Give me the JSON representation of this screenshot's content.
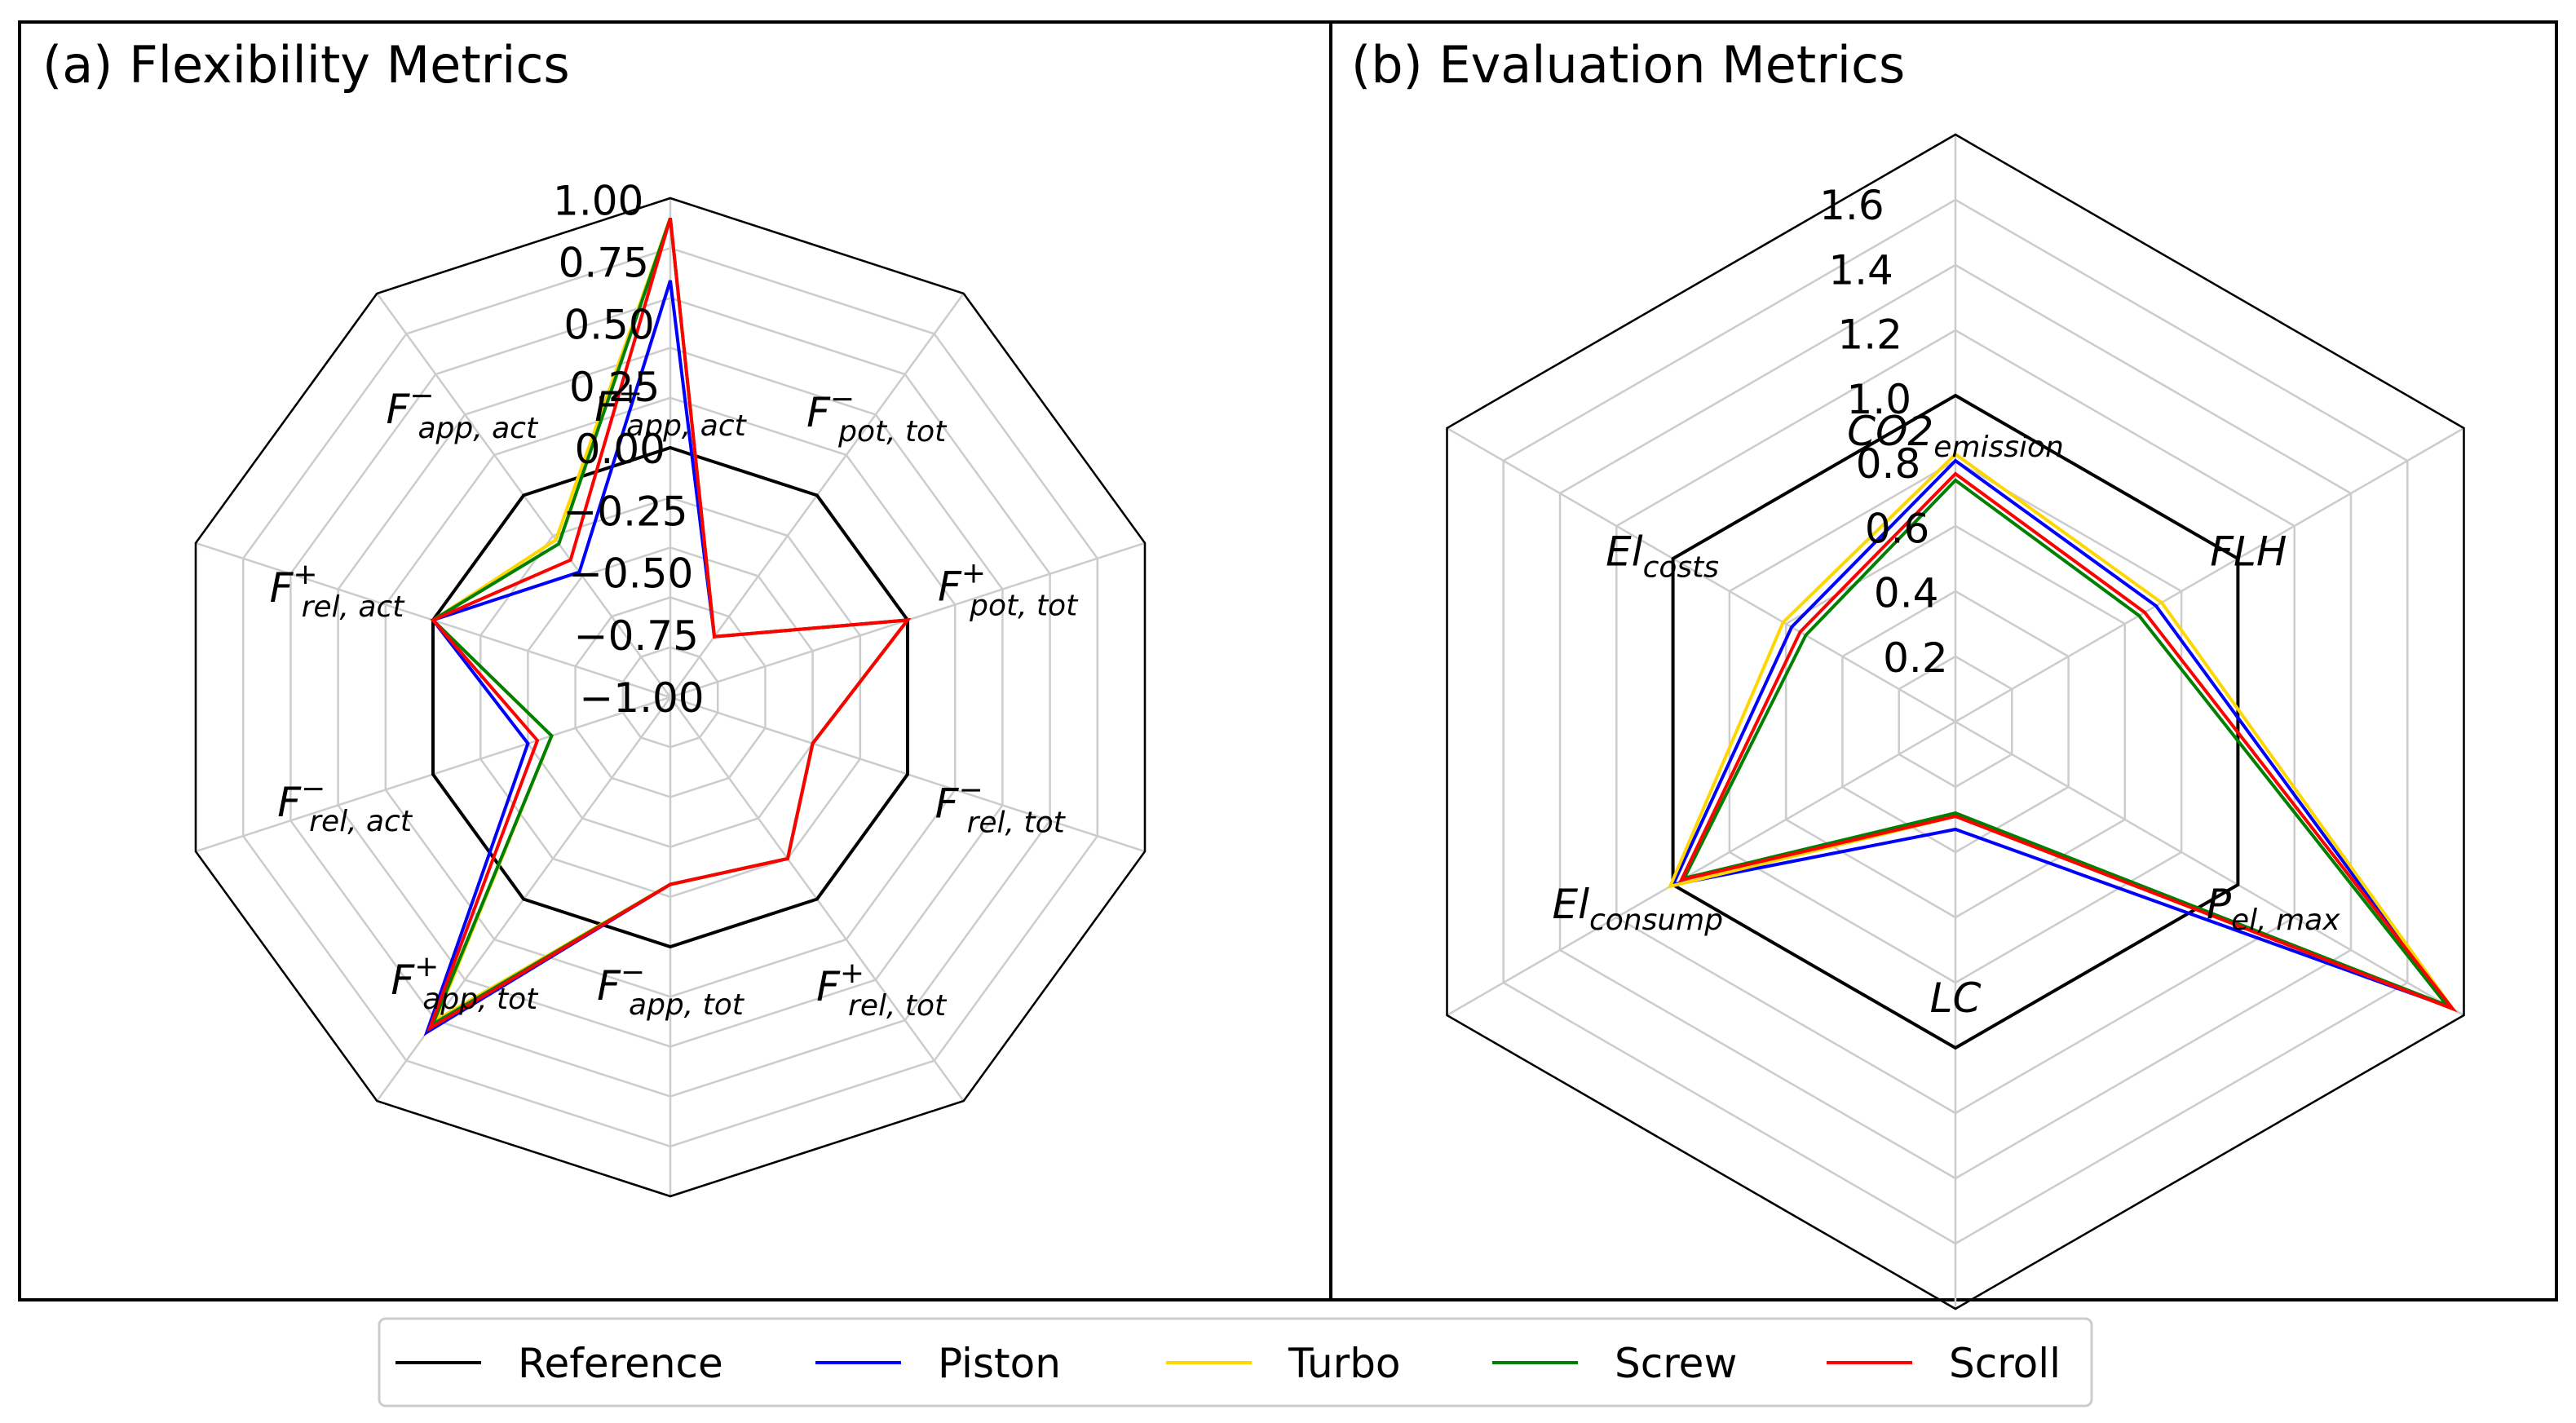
{
  "legend": [
    {
      "name": "Reference",
      "color": "#000000"
    },
    {
      "name": "Piston",
      "color": "#0000ff"
    },
    {
      "name": "Turbo",
      "color": "#ffd700"
    },
    {
      "name": "Screw",
      "color": "#008000"
    },
    {
      "name": "Scroll",
      "color": "#ff0000"
    }
  ],
  "chart_data": [
    {
      "type": "radar",
      "title": "(a) Flexibility Metrics",
      "axes": [
        {
          "base": "F",
          "sup": "+",
          "sub": "app, act"
        },
        {
          "base": "F",
          "sup": "−",
          "sub": "pot, tot"
        },
        {
          "base": "F",
          "sup": "+",
          "sub": "pot, tot"
        },
        {
          "base": "F",
          "sup": "−",
          "sub": "rel, tot"
        },
        {
          "base": "F",
          "sup": "+",
          "sub": "rel, tot"
        },
        {
          "base": "F",
          "sup": "−",
          "sub": "app, tot"
        },
        {
          "base": "F",
          "sup": "+",
          "sub": "app, tot"
        },
        {
          "base": "F",
          "sup": "−",
          "sub": "rel, act"
        },
        {
          "base": "F",
          "sup": "+",
          "sub": "rel, act"
        },
        {
          "base": "F",
          "sup": "−",
          "sub": "app, act"
        }
      ],
      "rlim": [
        -1.0,
        1.0
      ],
      "rticks": [
        -1.0,
        -0.75,
        -0.5,
        -0.25,
        0.0,
        0.25,
        0.5,
        0.75,
        1.0
      ],
      "rtick_labels": [
        "−1.00",
        "−0.75",
        "−0.50",
        "−0.25",
        "0.00",
        "0.25",
        "0.50",
        "0.75",
        "1.00"
      ],
      "grid_levels": [
        -1.0,
        -0.8,
        -0.6,
        -0.4,
        -0.2,
        0.0,
        0.2,
        0.4,
        0.6,
        0.8,
        1.0
      ],
      "series": [
        {
          "name": "Reference",
          "values": [
            0,
            0,
            0,
            0,
            0,
            0,
            0,
            0,
            0,
            0
          ]
        },
        {
          "name": "Piston",
          "values": [
            0.67,
            -0.7,
            0.0,
            -0.4,
            -0.2,
            -0.25,
            0.66,
            -0.4,
            0.0,
            -0.38
          ]
        },
        {
          "name": "Turbo",
          "values": [
            0.92,
            -0.7,
            0.0,
            -0.4,
            -0.2,
            -0.25,
            0.6,
            -0.5,
            0.0,
            -0.22
          ]
        },
        {
          "name": "Screw",
          "values": [
            0.92,
            -0.7,
            0.0,
            -0.4,
            -0.2,
            -0.25,
            0.62,
            -0.5,
            0.0,
            -0.24
          ]
        },
        {
          "name": "Scroll",
          "values": [
            0.92,
            -0.7,
            0.0,
            -0.4,
            -0.2,
            -0.25,
            0.64,
            -0.44,
            0.0,
            -0.32
          ]
        }
      ]
    },
    {
      "type": "radar",
      "title": "(b) Evaluation Metrics",
      "axes": [
        {
          "base": "CO2",
          "sub": "emission"
        },
        {
          "base": "FLH",
          "sub": ""
        },
        {
          "base": "P",
          "sub": "el, max"
        },
        {
          "base": "LC",
          "sub": ""
        },
        {
          "base": "El",
          "sub": "consump"
        },
        {
          "base": "El",
          "sub": "costs"
        }
      ],
      "rlim": [
        0,
        1.8
      ],
      "rticks": [
        0.2,
        0.4,
        0.6,
        0.8,
        1.0,
        1.2,
        1.4,
        1.6
      ],
      "rtick_labels": [
        "0.2",
        "0.4",
        "0.6",
        "0.8",
        "1.0",
        "1.2",
        "1.4",
        "1.6"
      ],
      "grid_levels": [
        0.2,
        0.4,
        0.6,
        0.8,
        1.0,
        1.2,
        1.4,
        1.6,
        1.8
      ],
      "series": [
        {
          "name": "Reference",
          "values": [
            1.0,
            1.0,
            1.0,
            1.0,
            1.0,
            1.0
          ]
        },
        {
          "name": "Piston",
          "values": [
            0.8,
            0.71,
            1.75,
            0.33,
            1.0,
            0.58
          ]
        },
        {
          "name": "Turbo",
          "values": [
            0.82,
            0.73,
            1.76,
            0.29,
            1.01,
            0.61
          ]
        },
        {
          "name": "Screw",
          "values": [
            0.74,
            0.65,
            1.74,
            0.28,
            0.96,
            0.53
          ]
        },
        {
          "name": "Scroll",
          "values": [
            0.76,
            0.67,
            1.76,
            0.29,
            0.97,
            0.55
          ]
        }
      ]
    }
  ]
}
